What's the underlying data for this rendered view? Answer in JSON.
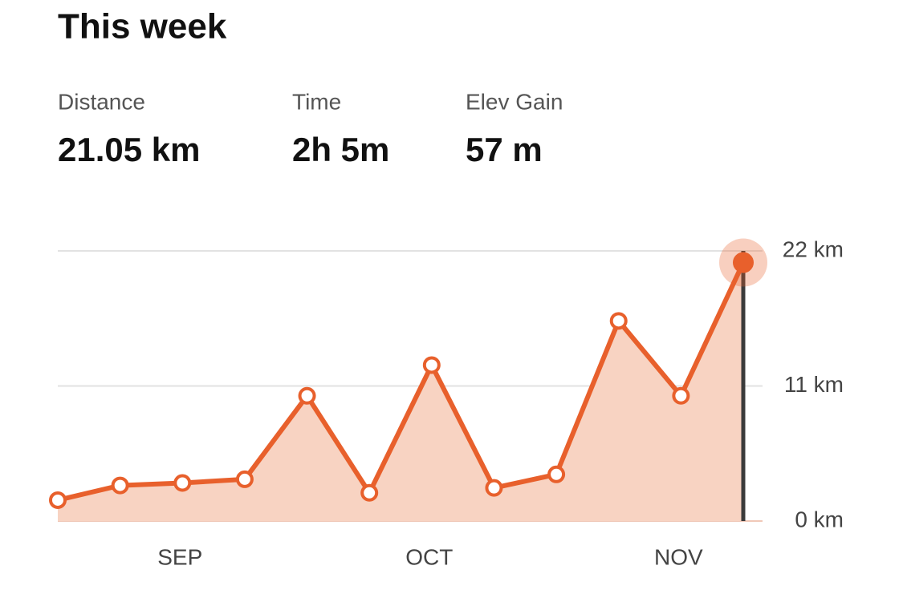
{
  "header": {
    "title": "This week"
  },
  "stats": [
    {
      "label": "Distance",
      "value": "21.05 km"
    },
    {
      "label": "Time",
      "value": "2h 5m"
    },
    {
      "label": "Elev Gain",
      "value": "57 m"
    }
  ],
  "chart_data": {
    "type": "line",
    "categories": [
      null,
      null,
      "SEP",
      null,
      null,
      null,
      "OCT",
      null,
      null,
      null,
      "NOV",
      null
    ],
    "values": [
      1.7,
      2.9,
      3.1,
      3.4,
      10.2,
      2.3,
      12.7,
      2.7,
      3.8,
      16.3,
      10.2,
      21.05
    ],
    "color": "#e8602c",
    "fill_color": "#f8d3c2",
    "ylim": [
      0,
      22
    ],
    "yticks": [
      {
        "value": 0,
        "label": "0 km"
      },
      {
        "value": 11,
        "label": "11 km"
      },
      {
        "value": 22,
        "label": "22 km"
      }
    ],
    "grid": true,
    "highlight_index": 11
  }
}
